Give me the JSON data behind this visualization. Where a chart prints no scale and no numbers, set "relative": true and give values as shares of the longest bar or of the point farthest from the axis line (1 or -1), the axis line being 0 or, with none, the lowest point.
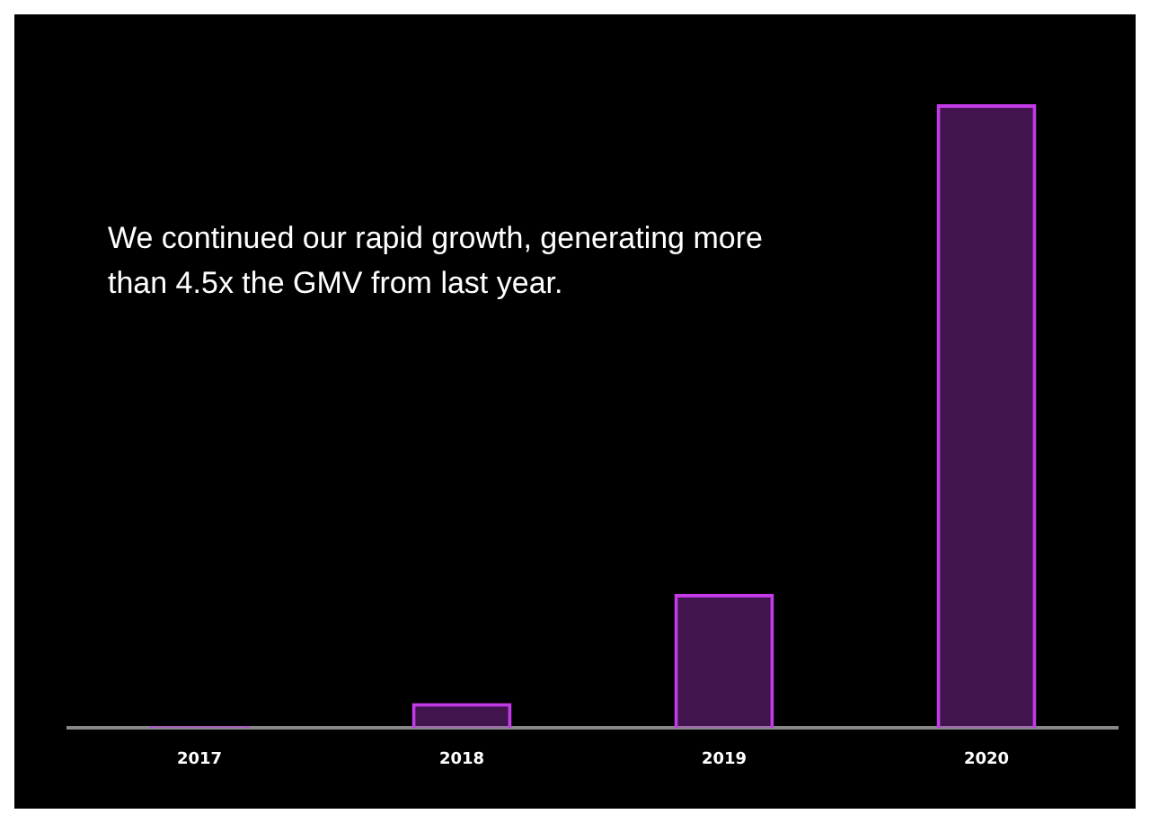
{
  "chart_data": {
    "type": "bar",
    "title": "We continued our rapid growth, generating more than 4.5x the GMV from last year.",
    "relative": true,
    "categories": [
      "2017",
      "2018",
      "2019",
      "2020"
    ],
    "values": [
      0.003,
      0.04,
      0.215,
      1
    ],
    "color": "#c23be6",
    "legend": false
  }
}
